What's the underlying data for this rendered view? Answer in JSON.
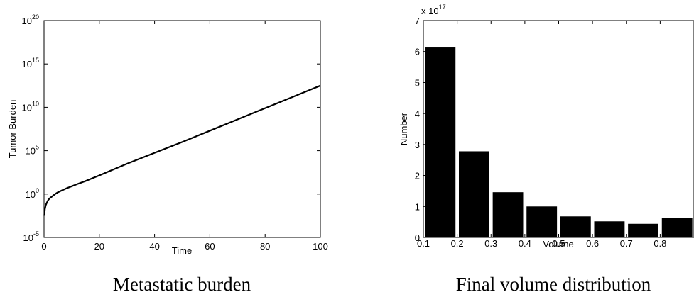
{
  "chart_data": [
    {
      "type": "line",
      "caption": "Metastatic burden",
      "xlabel": "Time",
      "ylabel": "Tumor Burden",
      "xlim": [
        0,
        100
      ],
      "yscale": "log",
      "ylim": [
        1e-05,
        1e+20
      ],
      "x_ticks": [
        "0",
        "20",
        "40",
        "60",
        "80",
        "100"
      ],
      "y_ticks": [
        {
          "base": "10",
          "exp": "-5"
        },
        {
          "base": "10",
          "exp": "0"
        },
        {
          "base": "10",
          "exp": "5"
        },
        {
          "base": "10",
          "exp": "10"
        },
        {
          "base": "10",
          "exp": "15"
        },
        {
          "base": "10",
          "exp": "20"
        }
      ],
      "series": [
        {
          "x": [
            0.1,
            0.3,
            0.6,
            1,
            1.5,
            2,
            3,
            4,
            5,
            6,
            8,
            10,
            12,
            15,
            20,
            25,
            30,
            40,
            50,
            60,
            70,
            80,
            90,
            100
          ],
          "y": [
            0.00316,
            0.0178,
            0.05,
            0.1,
            0.2,
            0.316,
            0.562,
            1,
            1.585,
            2.24,
            4.47,
            7.94,
            14.1,
            31.6,
            141,
            661,
            3160,
            56200,
            1000000.0,
            20000000.0,
            398000000.0,
            7940000000.0,
            158000000000.0,
            3160000000000.0
          ]
        }
      ],
      "color": "#000000"
    },
    {
      "type": "bar",
      "caption": "Final volume distribution",
      "xlabel": "Volume",
      "ylabel": "Number",
      "multiplier": {
        "base": "x 10",
        "exp": "17"
      },
      "xlim": [
        0.1,
        0.9
      ],
      "ylim": [
        0,
        7
      ],
      "x_ticks": [
        "0.1",
        "0.2",
        "0.3",
        "0.4",
        "0.5",
        "0.6",
        "0.7",
        "0.8"
      ],
      "y_ticks": [
        "0",
        "1",
        "2",
        "3",
        "4",
        "5",
        "6",
        "7"
      ],
      "bar_width": 0.09,
      "categories": [
        0.15,
        0.25,
        0.35,
        0.45,
        0.55,
        0.65,
        0.75,
        0.85
      ],
      "values": [
        6.13,
        2.78,
        1.46,
        1.0,
        0.68,
        0.52,
        0.44,
        0.63
      ],
      "color": "#000000"
    }
  ]
}
